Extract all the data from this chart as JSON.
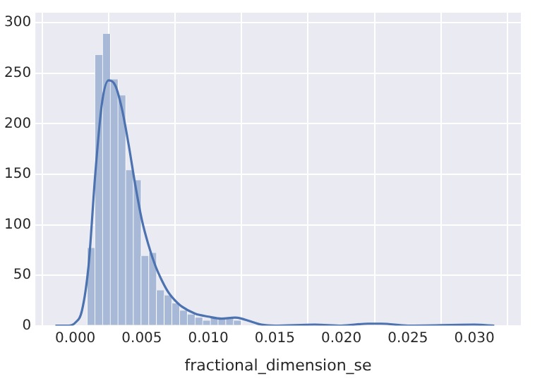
{
  "chart_data": {
    "type": "histogram",
    "xlabel": "fractional_dimension_se",
    "xlim": [
      -0.003,
      0.0335
    ],
    "ylim": [
      0,
      310
    ],
    "xticks": [
      {
        "value": 0,
        "label": "0.000"
      },
      {
        "value": 0.005,
        "label": "0.005"
      },
      {
        "value": 0.01,
        "label": "0.010"
      },
      {
        "value": 0.015,
        "label": "0.015"
      },
      {
        "value": 0.02,
        "label": "0.020"
      },
      {
        "value": 0.025,
        "label": "0.025"
      },
      {
        "value": 0.03,
        "label": "0.030"
      }
    ],
    "yticks": [
      0,
      50,
      100,
      150,
      200,
      250,
      300
    ],
    "grid": true,
    "legend": false,
    "series": [
      {
        "color": "#a8b9d7",
        "bins": [
          0.000895,
          0.001474,
          0.002053,
          0.002632,
          0.003211,
          0.00379,
          0.004369,
          0.004948,
          0.005527,
          0.006106,
          0.006685,
          0.007264,
          0.007843,
          0.008422,
          0.009001,
          0.00958,
          0.010159,
          0.010738,
          0.011317,
          0.011896,
          0.012475,
          0.013054,
          0.013633,
          0.014212,
          0.014791,
          0.01537,
          0.015949,
          0.016528,
          0.017107,
          0.017686,
          0.018265,
          0.018844,
          0.019423,
          0.020002,
          0.020581,
          0.02116,
          0.021739,
          0.022318,
          0.022897,
          0.023476,
          0.024055,
          0.024634,
          0.025213,
          0.025792,
          0.026371,
          0.02695,
          0.027529,
          0.028108,
          0.028687,
          0.029266,
          0.029845
        ],
        "values": [
          77,
          268,
          289,
          244,
          228,
          154,
          144,
          69,
          72,
          35,
          30,
          22,
          15,
          11,
          8,
          5,
          8,
          7,
          8,
          5,
          null,
          0,
          0,
          0,
          0,
          0,
          0,
          0,
          0,
          1,
          0,
          0,
          0,
          0,
          0,
          0,
          0,
          null,
          null,
          0,
          0,
          0,
          0,
          0,
          0,
          0,
          0,
          0,
          0,
          1
        ]
      },
      {
        "type": "line",
        "color": "#4c72b0",
        "x": [
          -0.0015,
          -0.0005,
          0,
          0.0005,
          0.001,
          0.0015,
          0.002,
          0.0025,
          0.003,
          0.0035,
          0.004,
          0.0045,
          0.005,
          0.0055,
          0.006,
          0.0065,
          0.007,
          0.0075,
          0.008,
          0.009,
          0.01,
          0.011,
          0.012,
          0.0125,
          0.013,
          0.014,
          0.015,
          0.018,
          0.02,
          0.022,
          0.023,
          0.025,
          0.03,
          0.0315
        ],
        "values": [
          0,
          0,
          3,
          15,
          60,
          150,
          220,
          243,
          238,
          215,
          180,
          140,
          105,
          80,
          60,
          45,
          33,
          25,
          19,
          12,
          9,
          7,
          8,
          7,
          5,
          1,
          0,
          1,
          0,
          2,
          2,
          0,
          1,
          0
        ]
      }
    ]
  }
}
